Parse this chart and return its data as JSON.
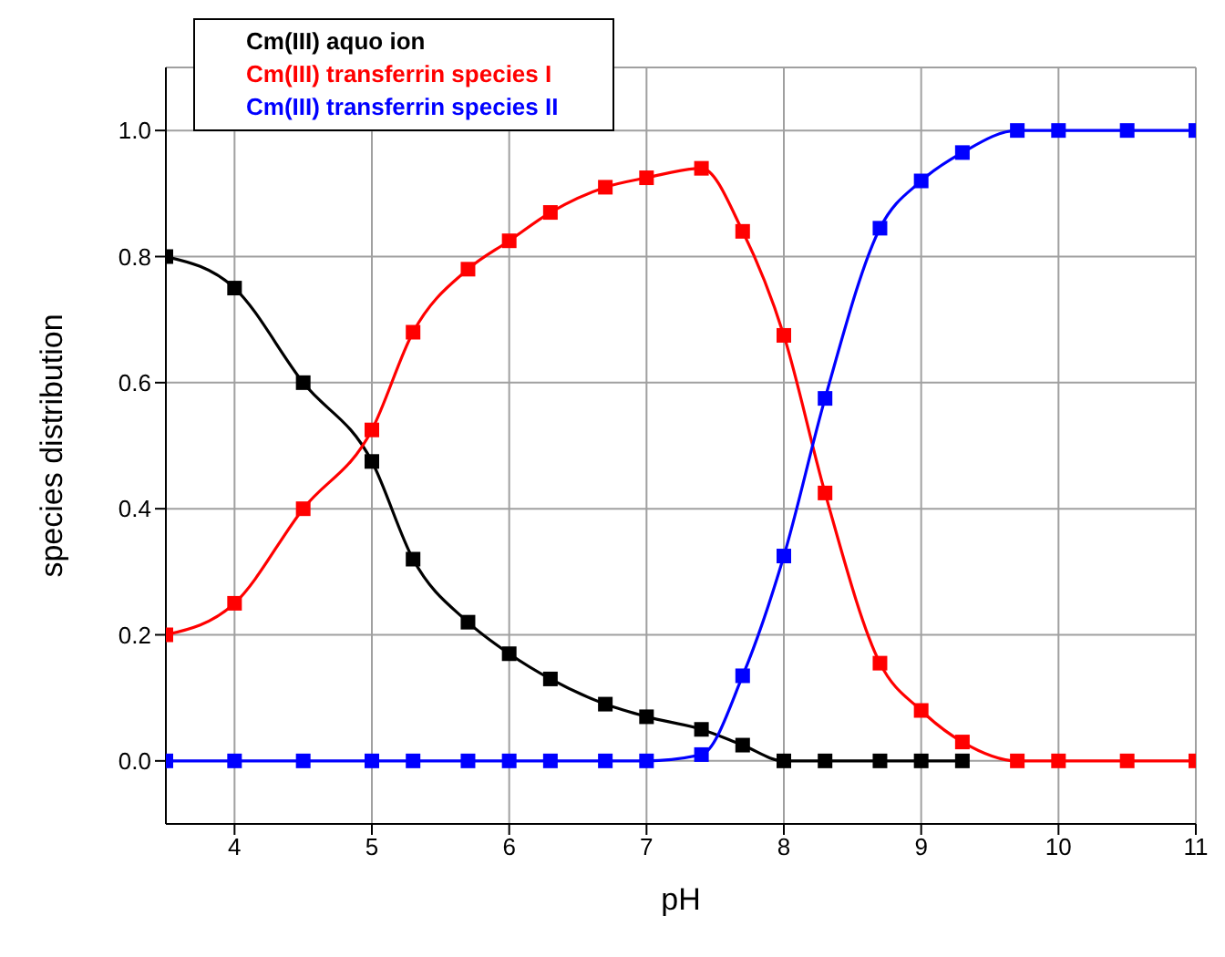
{
  "chart_data": {
    "type": "line",
    "xlabel": "pH",
    "ylabel": "species distribution",
    "x": [
      3.5,
      4,
      4.5,
      5,
      5.3,
      5.7,
      6,
      6.3,
      6.7,
      7,
      7.4,
      7.7,
      8,
      8.3,
      8.7,
      9,
      9.3,
      9.7,
      10,
      10.5,
      11
    ],
    "series": [
      {
        "name": "Cm(III) aquo ion",
        "color": "#000000",
        "values": [
          0.8,
          0.75,
          0.6,
          0.475,
          0.32,
          0.22,
          0.17,
          0.13,
          0.09,
          0.07,
          0.05,
          0.025,
          0,
          0,
          0,
          0,
          0,
          null,
          null,
          null,
          null
        ]
      },
      {
        "name": "Cm(III) transferrin species I",
        "color": "#ff0000",
        "values": [
          0.2,
          0.25,
          0.4,
          0.525,
          0.68,
          0.78,
          0.825,
          0.87,
          0.91,
          0.925,
          0.94,
          0.84,
          0.675,
          0.425,
          0.155,
          0.08,
          0.03,
          0,
          0,
          0,
          0
        ]
      },
      {
        "name": "Cm(III) transferrin species II",
        "color": "#0000ff",
        "values": [
          0,
          0,
          0,
          0,
          0,
          0,
          0,
          0,
          0,
          0,
          0.01,
          0.135,
          0.325,
          0.575,
          0.845,
          0.92,
          0.965,
          1.0,
          1.0,
          1.0,
          1.0
        ]
      }
    ],
    "xlim": [
      3.5,
      11
    ],
    "xticks": [
      4,
      5,
      6,
      7,
      8,
      9,
      10,
      11
    ],
    "ylim": [
      -0.1,
      1.1
    ],
    "yticks": [
      {
        "value": 0,
        "label": "0.0"
      },
      {
        "value": 0.2,
        "label": "0.2"
      },
      {
        "value": 0.4,
        "label": "0.4"
      },
      {
        "value": 0.6,
        "label": "0.6"
      },
      {
        "value": 0.8,
        "label": "0.8"
      },
      {
        "value": 1,
        "label": "1.0"
      }
    ],
    "grid": true,
    "legend": "top left",
    "marker": "square",
    "line_style": "solid"
  }
}
